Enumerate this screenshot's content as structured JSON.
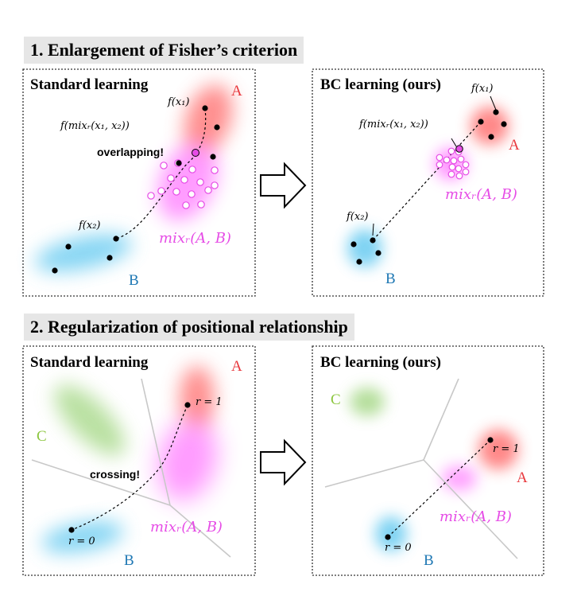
{
  "section1": {
    "title": "1. Enlargement of Fisher’s criterion"
  },
  "section2": {
    "title": "2. Regularization of positional relationship"
  },
  "panel_standard_1": {
    "title": "Standard learning",
    "class_a": "A",
    "class_b": "B",
    "fx1": "f(x₁)",
    "fx2": "f(x₂)",
    "fmix": "f(mixᵣ(x₁, x₂))",
    "overlap_note": "overlapping!",
    "mix_label": "mixᵣ(A, B)"
  },
  "panel_bc_1": {
    "title": "BC learning (ours)",
    "class_a": "A",
    "class_b": "B",
    "fx1": "f(x₁)",
    "fx2": "f(x₂)",
    "fmix": "f(mixᵣ(x₁, x₂))",
    "mix_label": "mixᵣ(A, B)"
  },
  "panel_standard_2": {
    "title": "Standard learning",
    "class_a": "A",
    "class_b": "B",
    "class_c": "C",
    "r1": "r = 1",
    "r0": "r = 0",
    "cross_note": "crossing!",
    "mix_label": "mixᵣ(A, B)"
  },
  "panel_bc_2": {
    "title": "BC learning (ours)",
    "class_a": "A",
    "class_b": "B",
    "class_c": "C",
    "r1": "r = 1",
    "r0": "r = 0",
    "mix_label": "mixᵣ(A, B)"
  },
  "colors": {
    "class_a": "#e8383d",
    "class_b": "#1f78b4",
    "class_c": "#8cc63f",
    "mix": "#e64ce6",
    "blob_a": "#ff6a6a",
    "blob_b": "#5ec8f0",
    "blob_c": "#a8d98a",
    "blob_mix": "#ff66ff"
  },
  "icons": {
    "arrow": "right-arrow-icon"
  }
}
